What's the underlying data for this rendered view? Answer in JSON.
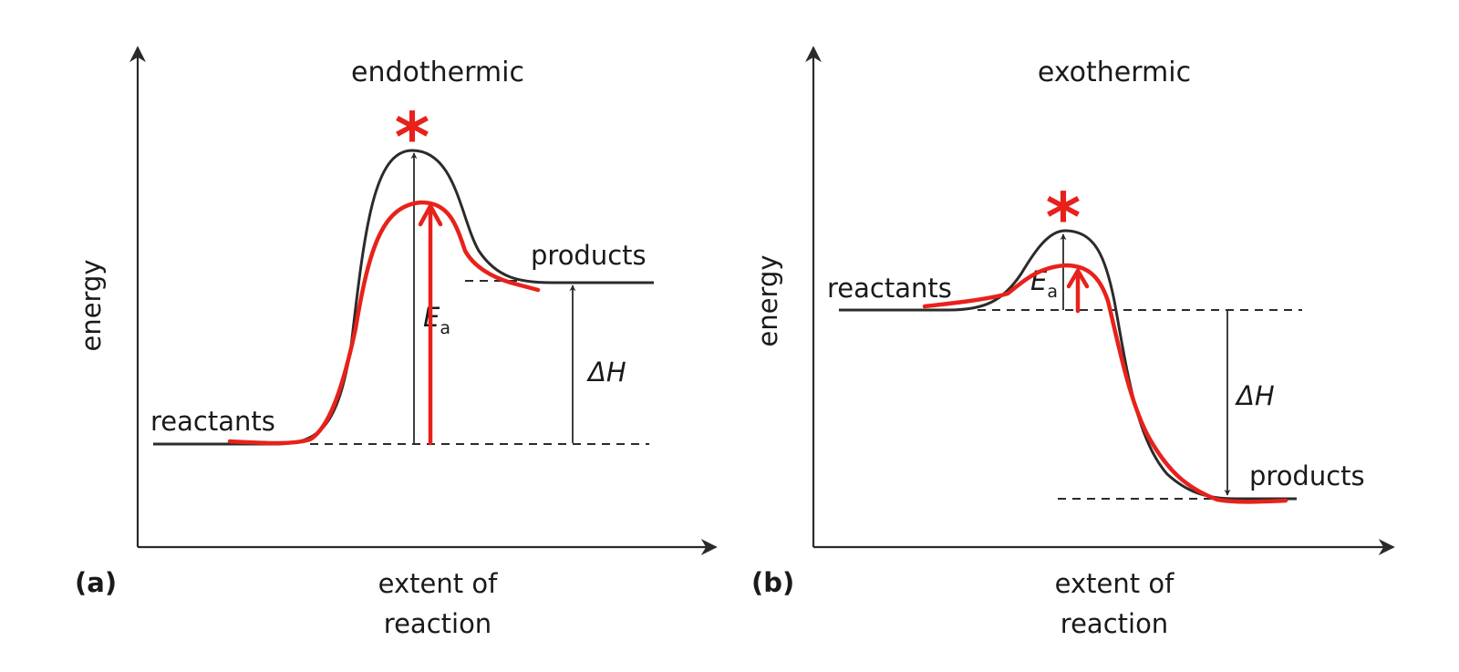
{
  "panel_a": {
    "title": "endothermic",
    "panel_label": "(a)",
    "y_axis_label": "energy",
    "x_axis_label_line1": "extent of",
    "x_axis_label_line2": "reaction",
    "reactants_label": "reactants",
    "products_label": "products",
    "ea_symbol": "E",
    "ea_subscript": "a",
    "dh_label": "ΔH",
    "star_glyph": "*"
  },
  "panel_b": {
    "title": "exothermic",
    "panel_label": "(b)",
    "y_axis_label": "energy",
    "x_axis_label_line1": "extent of",
    "x_axis_label_line2": "reaction",
    "reactants_label": "reactants",
    "products_label": "products",
    "ea_symbol": "E",
    "ea_subscript": "a",
    "dh_label": "ΔH",
    "star_glyph": "*"
  },
  "colors": {
    "annotation": "#e8211b",
    "ink": "#2b2b2b"
  }
}
